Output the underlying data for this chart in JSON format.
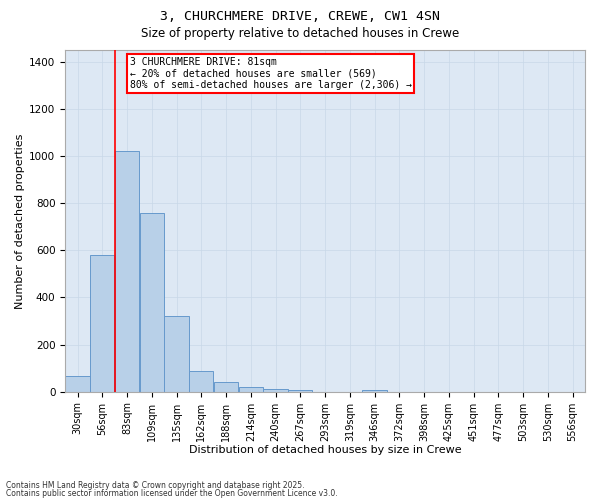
{
  "title1": "3, CHURCHMERE DRIVE, CREWE, CW1 4SN",
  "title2": "Size of property relative to detached houses in Crewe",
  "xlabel": "Distribution of detached houses by size in Crewe",
  "ylabel": "Number of detached properties",
  "bar_color": "#b8d0e8",
  "bar_edge_color": "#6699cc",
  "background_color": "#dde8f4",
  "red_line_x": 2,
  "categories": [
    "30sqm",
    "56sqm",
    "83sqm",
    "109sqm",
    "135sqm",
    "162sqm",
    "188sqm",
    "214sqm",
    "240sqm",
    "267sqm",
    "293sqm",
    "319sqm",
    "346sqm",
    "372sqm",
    "398sqm",
    "425sqm",
    "451sqm",
    "477sqm",
    "503sqm",
    "530sqm",
    "556sqm"
  ],
  "values": [
    65,
    580,
    1020,
    760,
    320,
    90,
    40,
    20,
    10,
    8,
    0,
    0,
    8,
    0,
    0,
    0,
    0,
    0,
    0,
    0,
    0
  ],
  "ylim": [
    0,
    1450
  ],
  "yticks": [
    0,
    200,
    400,
    600,
    800,
    1000,
    1200,
    1400
  ],
  "annotation_text": "3 CHURCHMERE DRIVE: 81sqm\n← 20% of detached houses are smaller (569)\n80% of semi-detached houses are larger (2,306) →",
  "annotation_box_color": "white",
  "annotation_box_edge_color": "red",
  "footer1": "Contains HM Land Registry data © Crown copyright and database right 2025.",
  "footer2": "Contains public sector information licensed under the Open Government Licence v3.0.",
  "grid_color": "#c8d8e8"
}
